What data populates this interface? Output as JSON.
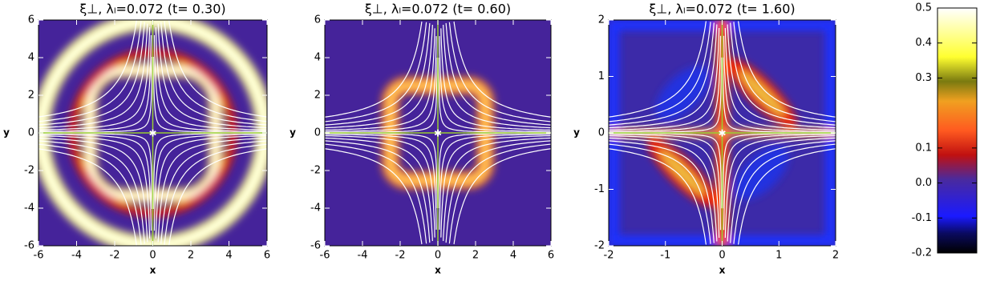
{
  "chart_data": [
    {
      "type": "heatmap",
      "title": "ξ⊥, λₗ=0.072 (t= 0.30)",
      "xlabel": "x",
      "ylabel": "y",
      "xlim": [
        -6,
        6
      ],
      "ylim": [
        -6,
        6
      ],
      "xticks": [
        -6,
        -4,
        -2,
        0,
        2,
        4,
        6
      ],
      "yticks": [
        -6,
        -4,
        -2,
        0,
        2,
        4,
        6
      ]
    },
    {
      "type": "heatmap",
      "title": "ξ⊥, λₗ=0.072 (t= 0.60)",
      "xlabel": "x",
      "ylabel": "y",
      "xlim": [
        -6,
        6
      ],
      "ylim": [
        -6,
        6
      ],
      "xticks": [
        -6,
        -4,
        -2,
        0,
        2,
        4,
        6
      ],
      "yticks": [
        -6,
        -4,
        -2,
        0,
        2,
        4,
        6
      ]
    },
    {
      "type": "heatmap",
      "title": "ξ⊥, λₗ=0.072 (t= 1.60)",
      "xlabel": "x",
      "ylabel": "y",
      "xlim": [
        -2,
        2
      ],
      "ylim": [
        -2,
        2
      ],
      "xticks": [
        -2,
        -1,
        0,
        1,
        2
      ],
      "yticks": [
        -2,
        -1,
        0,
        1,
        2
      ]
    },
    {
      "type": "colorbar",
      "ylim": [
        -0.2,
        0.5
      ],
      "yticks": [
        -0.2,
        -0.1,
        {
          "value": 0,
          "label": "0.0"
        },
        0.1,
        0.3,
        0.4,
        0.5
      ]
    }
  ]
}
